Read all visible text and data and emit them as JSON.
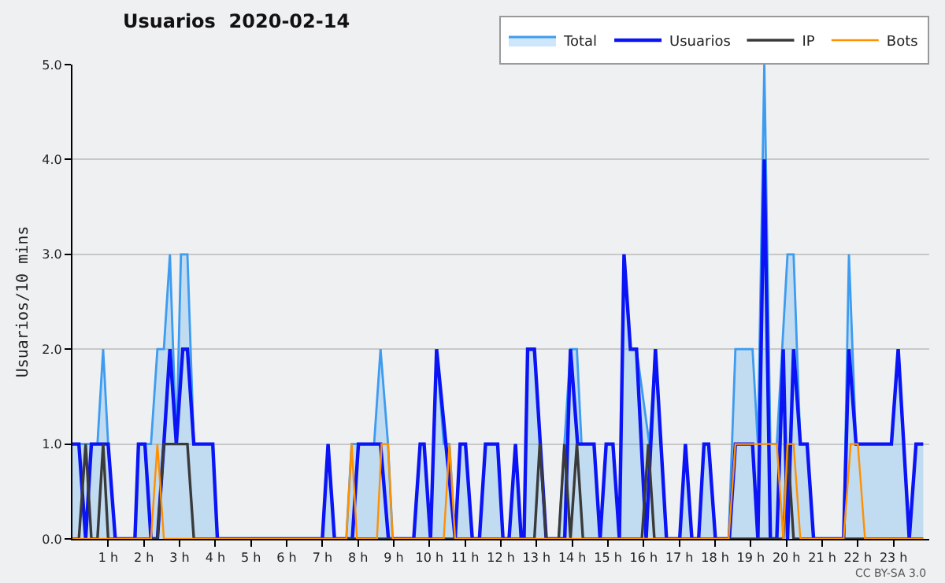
{
  "chart_data": {
    "type": "line",
    "title": "Usuarios  2020-02-14",
    "ylabel": "Usuarios/10 mins",
    "xlim": [
      0,
      24
    ],
    "xticks": [
      {
        "value": 1,
        "label": "1 h"
      },
      {
        "value": 2,
        "label": "2 h"
      },
      {
        "value": 3,
        "label": "3 h"
      },
      {
        "value": 4,
        "label": "4 h"
      },
      {
        "value": 5,
        "label": "5 h"
      },
      {
        "value": 6,
        "label": "6 h"
      },
      {
        "value": 7,
        "label": "7 h"
      },
      {
        "value": 8,
        "label": "8 h"
      },
      {
        "value": 9,
        "label": "9 h"
      },
      {
        "value": 10,
        "label": "10 h"
      },
      {
        "value": 11,
        "label": "11 h"
      },
      {
        "value": 12,
        "label": "12 h"
      },
      {
        "value": 13,
        "label": "13 h"
      },
      {
        "value": 14,
        "label": "14 h"
      },
      {
        "value": 15,
        "label": "15 h"
      },
      {
        "value": 16,
        "label": "16 h"
      },
      {
        "value": 17,
        "label": "17 h"
      },
      {
        "value": 18,
        "label": "18 h"
      },
      {
        "value": 19,
        "label": "19 h"
      },
      {
        "value": 20,
        "label": "20 h"
      },
      {
        "value": 21,
        "label": "21 h"
      },
      {
        "value": 22,
        "label": "22 h"
      },
      {
        "value": 23,
        "label": "23 h"
      }
    ],
    "ylim": [
      0,
      5
    ],
    "yticks": [
      {
        "value": 0,
        "label": "0.0"
      },
      {
        "value": 1,
        "label": "1.0"
      },
      {
        "value": 2,
        "label": "2.0"
      },
      {
        "value": 3,
        "label": "3.0"
      },
      {
        "value": 4,
        "label": "4.0"
      },
      {
        "value": 5,
        "label": "5.0"
      }
    ],
    "grid": "y",
    "legend": "top right",
    "annotations": [
      "CC BY-SA 3.0"
    ],
    "series": [
      {
        "name": "Total",
        "type": "area",
        "color": "#3d9bf0",
        "x": [
          0,
          0.7,
          0.86,
          1.0,
          1.2,
          1.75,
          1.85,
          2.2,
          2.38,
          2.56,
          2.73,
          2.91,
          3.04,
          3.22,
          3.4,
          3.93,
          4.06,
          7.0,
          7.16,
          7.34,
          7.67,
          7.82,
          8.45,
          8.63,
          8.84,
          8.97,
          9.56,
          9.74,
          9.85,
          10.03,
          10.2,
          10.4,
          10.56,
          10.72,
          10.86,
          11.01,
          11.2,
          11.4,
          11.57,
          11.91,
          12.06,
          12.23,
          12.41,
          12.57,
          12.65,
          12.75,
          12.94,
          13.27,
          13.62,
          13.78,
          13.95,
          14.13,
          14.26,
          14.61,
          14.78,
          14.95,
          15.14,
          15.32,
          15.45,
          15.63,
          15.8,
          16.16,
          16.33,
          16.64,
          17.01,
          17.17,
          17.35,
          17.54,
          17.69,
          17.82,
          18.01,
          18.38,
          18.57,
          19.05,
          19.2,
          19.38,
          19.55,
          19.73,
          20.03,
          20.2,
          20.39,
          20.58,
          20.76,
          21.6,
          21.75,
          21.95,
          22.94,
          23.13,
          23.44,
          23.63,
          23.83
        ],
        "values": [
          1,
          1,
          2,
          1,
          0,
          0,
          1,
          1,
          2,
          2,
          3,
          1,
          3,
          3,
          1,
          1,
          0,
          0,
          1,
          0,
          0,
          1,
          1,
          2,
          1,
          0,
          0,
          1,
          1,
          0,
          2,
          1,
          1,
          0,
          1,
          1,
          0,
          0,
          1,
          1,
          0,
          0,
          1,
          0,
          0,
          2,
          2,
          0,
          0,
          1,
          2,
          2,
          1,
          1,
          0,
          1,
          1,
          0,
          3,
          2,
          2,
          1,
          2,
          0,
          0,
          1,
          0,
          0,
          1,
          1,
          0,
          0,
          2,
          2,
          1,
          5,
          1,
          1,
          3,
          3,
          1,
          1,
          0,
          0,
          3,
          1,
          1,
          2,
          0,
          1,
          1
        ]
      },
      {
        "name": "Usuarios",
        "type": "line",
        "color": "#0a14f5",
        "x": [
          0,
          0.18,
          0.37,
          0.53,
          1.0,
          1.2,
          1.75,
          1.85,
          2.03,
          2.2,
          2.38,
          2.56,
          2.73,
          2.91,
          3.09,
          3.22,
          3.4,
          3.93,
          4.06,
          7.0,
          7.16,
          7.34,
          7.84,
          8.01,
          8.63,
          8.85,
          9.56,
          9.74,
          9.85,
          10.03,
          10.2,
          10.72,
          10.86,
          11.01,
          11.2,
          11.4,
          11.57,
          11.91,
          12.06,
          12.23,
          12.41,
          12.57,
          12.65,
          12.75,
          12.94,
          13.27,
          13.79,
          13.95,
          14.15,
          14.61,
          14.78,
          14.95,
          15.14,
          15.32,
          15.45,
          15.63,
          15.8,
          16.07,
          16.33,
          16.64,
          17.01,
          17.17,
          17.35,
          17.54,
          17.69,
          17.82,
          18.01,
          18.4,
          18.57,
          19.05,
          19.2,
          19.38,
          19.55,
          19.73,
          19.91,
          20.03,
          20.2,
          20.39,
          20.58,
          20.76,
          21.6,
          21.75,
          21.95,
          22.94,
          23.13,
          23.44,
          23.63,
          23.83
        ],
        "values": [
          1,
          1,
          0,
          1,
          1,
          0,
          0,
          1,
          1,
          0,
          0,
          1,
          2,
          1,
          2,
          2,
          1,
          1,
          0,
          0,
          1,
          0,
          0,
          1,
          1,
          0,
          0,
          1,
          1,
          0,
          2,
          0,
          1,
          1,
          0,
          0,
          1,
          1,
          0,
          0,
          1,
          0,
          0,
          2,
          2,
          0,
          0,
          2,
          1,
          1,
          0,
          1,
          1,
          0,
          3,
          2,
          2,
          0,
          2,
          0,
          0,
          1,
          0,
          0,
          1,
          1,
          0,
          0,
          1,
          1,
          0,
          4,
          0,
          0,
          2,
          0,
          2,
          1,
          1,
          0,
          0,
          2,
          1,
          1,
          2,
          0,
          1,
          1
        ]
      },
      {
        "name": "IP",
        "type": "line",
        "color": "#3a3a3a",
        "x": [
          0,
          0.18,
          0.37,
          0.53,
          0.7,
          0.86,
          1.0,
          2.38,
          2.56,
          3.22,
          3.4,
          12.94,
          13.09,
          13.27,
          13.62,
          13.78,
          13.95,
          14.13,
          14.3,
          15.95,
          16.13,
          16.3,
          19.91,
          20.03,
          20.2,
          23.83
        ],
        "values": [
          0,
          0,
          1,
          0,
          0,
          1,
          0,
          0,
          1,
          1,
          0,
          0,
          1,
          0,
          0,
          1,
          0,
          1,
          0,
          0,
          1,
          0,
          0,
          1,
          0,
          0
        ]
      },
      {
        "name": "Bots",
        "type": "line",
        "color": "#ff9000",
        "x": [
          0,
          2.2,
          2.38,
          2.56,
          7.67,
          7.82,
          7.97,
          8.53,
          8.66,
          8.84,
          8.97,
          10.4,
          10.56,
          10.72,
          18.38,
          18.57,
          19.73,
          19.91,
          20.03,
          20.2,
          20.39,
          21.6,
          21.8,
          22.0,
          22.2,
          23.83
        ],
        "values": [
          0,
          0,
          1,
          0,
          0,
          1,
          0,
          0,
          1,
          1,
          0,
          0,
          1,
          0,
          0,
          1,
          1,
          0,
          1,
          1,
          0,
          0,
          1,
          1,
          0,
          0
        ]
      }
    ]
  }
}
